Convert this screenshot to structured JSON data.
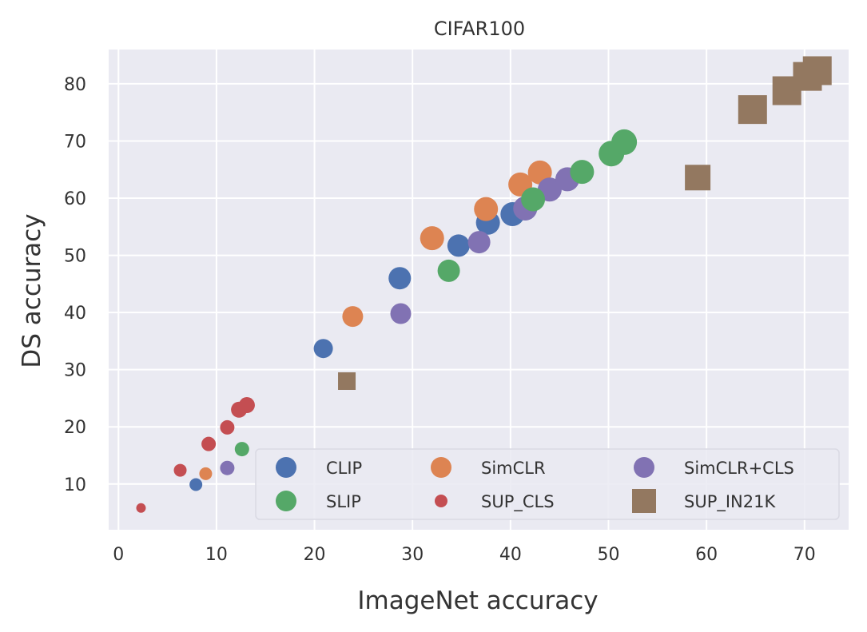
{
  "chart_data": {
    "type": "scatter",
    "title": "CIFAR100",
    "xlabel": "ImageNet accuracy",
    "ylabel": "DS accuracy",
    "xlim": [
      -1,
      74.5
    ],
    "ylim": [
      2,
      86
    ],
    "xticks": [
      0,
      10,
      20,
      30,
      40,
      50,
      60,
      70
    ],
    "yticks": [
      10,
      20,
      30,
      40,
      50,
      60,
      70,
      80
    ],
    "grid": true,
    "legend_position": "lower-right",
    "legend_columns": 3,
    "series": [
      {
        "name": "CLIP",
        "color": "#4c72b0",
        "marker": "circle",
        "points": [
          [
            7.9,
            9.9,
            8
          ],
          [
            20.9,
            33.7,
            12
          ],
          [
            28.7,
            46.0,
            14
          ],
          [
            34.7,
            51.7,
            14
          ],
          [
            37.7,
            55.7,
            15
          ],
          [
            40.2,
            57.2,
            15
          ],
          [
            41.5,
            58.2,
            15
          ]
        ]
      },
      {
        "name": "SimCLR",
        "color": "#dd8452",
        "marker": "circle",
        "points": [
          [
            8.9,
            11.8,
            8
          ],
          [
            23.9,
            39.3,
            13
          ],
          [
            32.0,
            53.0,
            15
          ],
          [
            37.5,
            58.1,
            15
          ],
          [
            41.0,
            62.4,
            15
          ],
          [
            43.0,
            64.5,
            15
          ]
        ]
      },
      {
        "name": "SimCLR+CLS",
        "color": "#8172b3",
        "marker": "circle",
        "points": [
          [
            11.1,
            12.8,
            9
          ],
          [
            28.8,
            39.8,
            13
          ],
          [
            36.8,
            52.3,
            14
          ],
          [
            41.5,
            58.2,
            15
          ],
          [
            44.0,
            61.5,
            15
          ],
          [
            45.8,
            63.3,
            15
          ]
        ]
      },
      {
        "name": "SLIP",
        "color": "#55a868",
        "marker": "circle",
        "points": [
          [
            12.6,
            16.1,
            9
          ],
          [
            33.7,
            47.3,
            14
          ],
          [
            42.3,
            59.8,
            15
          ],
          [
            47.3,
            64.6,
            15
          ],
          [
            50.3,
            67.8,
            16
          ],
          [
            51.6,
            69.8,
            16
          ]
        ]
      },
      {
        "name": "SUP_CLS",
        "color": "#c44e52",
        "marker": "circle",
        "points": [
          [
            2.3,
            5.8,
            6
          ],
          [
            6.3,
            12.4,
            8
          ],
          [
            9.2,
            17.0,
            9
          ],
          [
            11.1,
            19.9,
            9
          ],
          [
            12.3,
            23.0,
            10
          ],
          [
            13.1,
            23.8,
            10
          ]
        ]
      },
      {
        "name": "SUP_IN21K",
        "color": "#937860",
        "marker": "square",
        "points": [
          [
            23.3,
            28.0,
            11
          ],
          [
            59.1,
            63.6,
            16
          ],
          [
            64.7,
            75.5,
            18
          ],
          [
            68.2,
            78.8,
            18
          ],
          [
            70.3,
            81.3,
            18
          ],
          [
            71.3,
            82.3,
            18
          ]
        ]
      }
    ],
    "legend_order": [
      "CLIP",
      "SimCLR",
      "SimCLR+CLS",
      "SLIP",
      "SUP_CLS",
      "SUP_IN21K"
    ]
  }
}
